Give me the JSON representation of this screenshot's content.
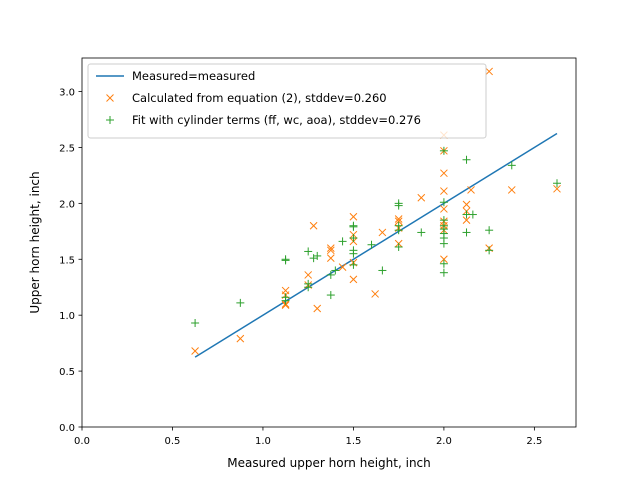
{
  "chart_data": {
    "type": "scatter",
    "title": "",
    "xlabel": "Measured upper horn height, inch",
    "ylabel": "Upper horn height, inch",
    "xlim": [
      0,
      2.73
    ],
    "ylim": [
      0,
      3.3
    ],
    "xticks": [
      0.0,
      0.5,
      1.0,
      1.5,
      2.0,
      2.5
    ],
    "yticks": [
      0.0,
      0.5,
      1.0,
      1.5,
      2.0,
      2.5,
      3.0
    ],
    "legend_position": "upper-left",
    "series": [
      {
        "name": "Measured=measured",
        "kind": "line",
        "color": "#1f77b4",
        "x": [
          0.625,
          2.625
        ],
        "y": [
          0.625,
          2.625
        ]
      },
      {
        "name": "Calculated from equation (2), stddev=0.260",
        "kind": "marker-x",
        "color": "#ff7f0e",
        "points": [
          [
            0.625,
            0.68
          ],
          [
            0.875,
            0.79
          ],
          [
            1.125,
            1.09
          ],
          [
            1.125,
            1.22
          ],
          [
            1.125,
            1.1
          ],
          [
            1.125,
            1.18
          ],
          [
            1.25,
            1.36
          ],
          [
            1.25,
            1.27
          ],
          [
            1.28,
            1.8
          ],
          [
            1.3,
            1.06
          ],
          [
            1.375,
            1.6
          ],
          [
            1.375,
            1.51
          ],
          [
            1.375,
            1.58
          ],
          [
            1.44,
            1.43
          ],
          [
            1.5,
            1.88
          ],
          [
            1.5,
            1.72
          ],
          [
            1.5,
            1.66
          ],
          [
            1.5,
            1.47
          ],
          [
            1.5,
            1.32
          ],
          [
            1.62,
            1.19
          ],
          [
            1.66,
            1.74
          ],
          [
            1.75,
            1.86
          ],
          [
            1.75,
            1.84
          ],
          [
            1.75,
            1.78
          ],
          [
            1.75,
            1.64
          ],
          [
            1.875,
            2.05
          ],
          [
            2.0,
            2.61
          ],
          [
            2.0,
            2.47
          ],
          [
            2.0,
            2.27
          ],
          [
            2.0,
            2.11
          ],
          [
            2.0,
            1.95
          ],
          [
            2.0,
            1.84
          ],
          [
            2.0,
            1.8
          ],
          [
            2.0,
            1.76
          ],
          [
            2.0,
            1.5
          ],
          [
            2.125,
            1.99
          ],
          [
            2.125,
            1.93
          ],
          [
            2.125,
            1.85
          ],
          [
            2.15,
            2.12
          ],
          [
            2.25,
            3.18
          ],
          [
            2.25,
            1.6
          ],
          [
            2.375,
            2.12
          ],
          [
            2.625,
            2.13
          ]
        ]
      },
      {
        "name": "Fit with cylinder terms (ff, wc, aoa), stddev=0.276",
        "kind": "marker-plus",
        "color": "#2ca02c",
        "points": [
          [
            0.625,
            0.93
          ],
          [
            0.875,
            1.11
          ],
          [
            1.125,
            1.5
          ],
          [
            1.125,
            1.49
          ],
          [
            1.125,
            1.16
          ],
          [
            1.125,
            1.13
          ],
          [
            1.25,
            1.57
          ],
          [
            1.25,
            1.28
          ],
          [
            1.25,
            1.25
          ],
          [
            1.28,
            1.51
          ],
          [
            1.3,
            1.53
          ],
          [
            1.375,
            1.18
          ],
          [
            1.375,
            1.36
          ],
          [
            1.4,
            1.4
          ],
          [
            1.44,
            1.66
          ],
          [
            1.5,
            1.8
          ],
          [
            1.5,
            1.79
          ],
          [
            1.5,
            1.69
          ],
          [
            1.5,
            1.58
          ],
          [
            1.5,
            1.55
          ],
          [
            1.5,
            1.45
          ],
          [
            1.6,
            1.63
          ],
          [
            1.66,
            1.4
          ],
          [
            1.75,
            2.0
          ],
          [
            1.75,
            1.98
          ],
          [
            1.75,
            1.8
          ],
          [
            1.75,
            1.76
          ],
          [
            1.75,
            1.61
          ],
          [
            1.875,
            1.74
          ],
          [
            2.0,
            2.47
          ],
          [
            2.0,
            2.01
          ],
          [
            2.0,
            1.85
          ],
          [
            2.0,
            1.8
          ],
          [
            2.0,
            1.77
          ],
          [
            2.0,
            1.73
          ],
          [
            2.0,
            1.69
          ],
          [
            2.0,
            1.64
          ],
          [
            2.0,
            1.46
          ],
          [
            2.0,
            1.38
          ],
          [
            2.125,
            2.39
          ],
          [
            2.125,
            1.9
          ],
          [
            2.125,
            1.74
          ],
          [
            2.16,
            1.9
          ],
          [
            2.25,
            1.76
          ],
          [
            2.25,
            1.58
          ],
          [
            2.375,
            2.34
          ],
          [
            2.625,
            2.18
          ]
        ]
      }
    ]
  }
}
